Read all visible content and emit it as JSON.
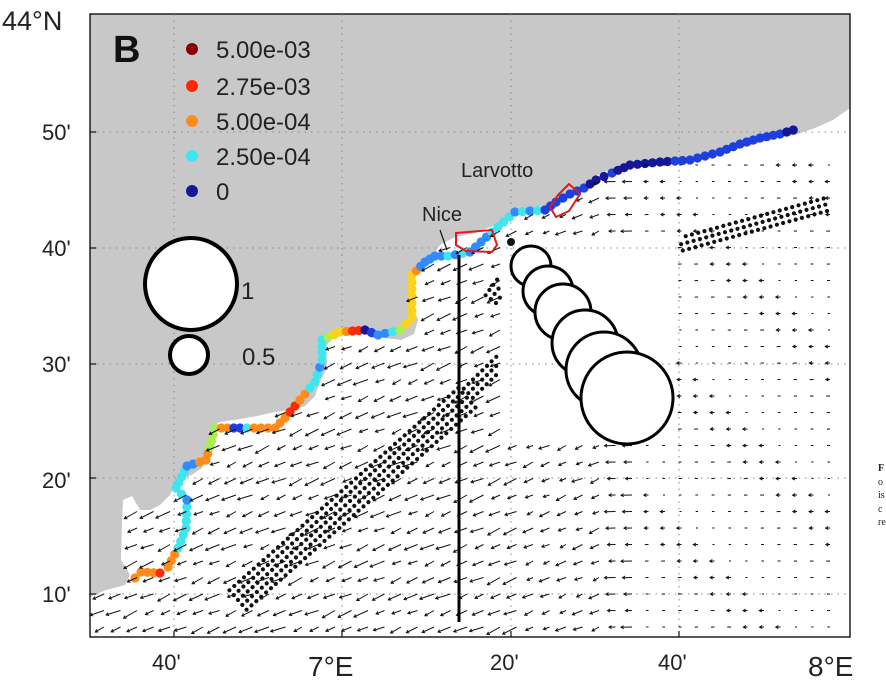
{
  "panel_label": "B",
  "legend": {
    "items": [
      {
        "label": "5.00e-03",
        "color": "#8b0000"
      },
      {
        "label": "2.75e-03",
        "color": "#ff2a00"
      },
      {
        "label": "5.00e-04",
        "color": "#ff8c1a"
      },
      {
        "label": "2.50e-04",
        "color": "#3fe6f0"
      },
      {
        "label": "0",
        "color": "#16169a"
      }
    ]
  },
  "size_legend": [
    {
      "label": "1",
      "value": 1
    },
    {
      "label": "0.5",
      "value": 0.5
    }
  ],
  "places": [
    "Nice",
    "Larvotto"
  ],
  "axes": {
    "corner_label": "44°N",
    "y_ticks": [
      "50'",
      "40'",
      "30'",
      "20'",
      "10'"
    ],
    "x_ticks_small": [
      "40'",
      "20'",
      "40'"
    ],
    "x_ticks_big": [
      "7°E",
      "8°E"
    ]
  },
  "edge_text": [
    "F",
    "o",
    "is",
    "c",
    "re"
  ],
  "colors": {
    "land": "#c8c8c8",
    "sea": "#ffffff",
    "gridline": "#9a9a9a",
    "area_outline": "#e01a1a",
    "transect": "#000000",
    "bubble_fill": "#ffffff",
    "vector": "#111111"
  }
}
